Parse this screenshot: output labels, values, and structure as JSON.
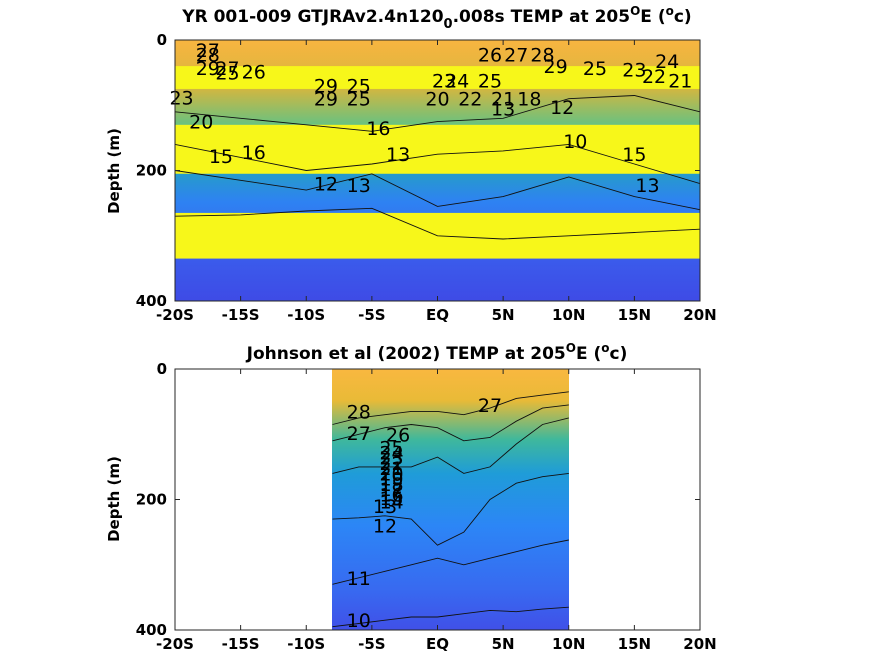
{
  "colors": {
    "warm": "#F6B942",
    "mid": "#2FB0A6",
    "cool": "#3A4FEA",
    "band": "#F7F71A",
    "background": "#FFFFFF"
  },
  "chart_data": [
    {
      "type": "heatmap",
      "title": "YR 001-009 GTJRAv2.4n120₀.008s TEMP at 205°E (°c)",
      "title_main": "YR 001-009 GTJRAv2.4n120",
      "title_sub": "0",
      "title_rest": ".008s TEMP at 205",
      "title_deg1": "O",
      "title_mid": "E (",
      "title_deg2": "o",
      "title_end": "c)",
      "ylabel": "Depth (m)",
      "xlim": [
        -20,
        20
      ],
      "ylim": [
        0,
        400
      ],
      "y_reversed": true,
      "x_ticks": [
        -20,
        -15,
        -10,
        -5,
        0,
        5,
        10,
        15,
        20
      ],
      "x_ticklabels": [
        "-20S",
        "-15S",
        "-10S",
        "-5S",
        "EQ",
        "5N",
        "10N",
        "15N",
        "20N"
      ],
      "y_ticks": [
        0,
        200,
        400
      ],
      "y_ticklabels": [
        "0",
        "200",
        "400"
      ],
      "yellow_bands_depth": [
        [
          40,
          75
        ],
        [
          130,
          205
        ],
        [
          265,
          335
        ]
      ],
      "series": [
        {
          "lat": [
            -20,
            -15,
            -10,
            -5,
            0,
            5,
            10,
            15,
            20
          ],
          "depth": [
            270,
            268,
            262,
            258,
            300,
            305,
            300,
            295,
            290
          ],
          "label": "15"
        },
        {
          "lat": [
            -20,
            -15,
            -10,
            -5,
            0,
            5,
            10,
            15,
            20
          ],
          "depth": [
            200,
            215,
            230,
            205,
            255,
            240,
            210,
            240,
            260
          ],
          "label": "16"
        },
        {
          "lat": [
            -20,
            -15,
            -10,
            -5,
            0,
            5,
            10,
            15,
            20
          ],
          "depth": [
            160,
            180,
            200,
            190,
            175,
            170,
            160,
            190,
            220
          ],
          "label": "20"
        },
        {
          "lat": [
            -20,
            -15,
            -10,
            -5,
            0,
            5,
            10,
            15,
            20
          ],
          "depth": [
            110,
            120,
            130,
            140,
            125,
            120,
            90,
            85,
            110
          ],
          "label": "23"
        }
      ],
      "contour_labels": [
        {
          "x": -17.5,
          "y": 15,
          "text": "27"
        },
        {
          "x": -17.5,
          "y": 22,
          "text": "28"
        },
        {
          "x": 4,
          "y": 22,
          "text": "26"
        },
        {
          "x": 6,
          "y": 22,
          "text": "27"
        },
        {
          "x": 8,
          "y": 22,
          "text": "28"
        },
        {
          "x": -17.5,
          "y": 43,
          "text": "29"
        },
        {
          "x": -16,
          "y": 43,
          "text": "27"
        },
        {
          "x": -16,
          "y": 50,
          "text": "25"
        },
        {
          "x": -14,
          "y": 48,
          "text": "26"
        },
        {
          "x": 9,
          "y": 40,
          "text": "29"
        },
        {
          "x": 12,
          "y": 43,
          "text": "25"
        },
        {
          "x": 15,
          "y": 45,
          "text": "23"
        },
        {
          "x": 17.5,
          "y": 32,
          "text": "24"
        },
        {
          "x": 16.5,
          "y": 55,
          "text": "22"
        },
        {
          "x": 18.5,
          "y": 62,
          "text": "21"
        },
        {
          "x": 0.5,
          "y": 62,
          "text": "23"
        },
        {
          "x": 1.5,
          "y": 62,
          "text": "24"
        },
        {
          "x": 4,
          "y": 62,
          "text": "25"
        },
        {
          "x": -6,
          "y": 70,
          "text": "25"
        },
        {
          "x": -8.5,
          "y": 70,
          "text": "29"
        },
        {
          "x": -19.5,
          "y": 88,
          "text": "23"
        },
        {
          "x": -8.5,
          "y": 90,
          "text": "29"
        },
        {
          "x": -6,
          "y": 90,
          "text": "25"
        },
        {
          "x": 0,
          "y": 90,
          "text": "20"
        },
        {
          "x": 2.5,
          "y": 90,
          "text": "22"
        },
        {
          "x": 5,
          "y": 90,
          "text": "21"
        },
        {
          "x": 7,
          "y": 90,
          "text": "18"
        },
        {
          "x": 5,
          "y": 105,
          "text": "13"
        },
        {
          "x": 9.5,
          "y": 103,
          "text": "12"
        },
        {
          "x": -18,
          "y": 125,
          "text": "20"
        },
        {
          "x": -4.5,
          "y": 135,
          "text": "16"
        },
        {
          "x": -14,
          "y": 172,
          "text": "16"
        },
        {
          "x": -16.5,
          "y": 178,
          "text": "15"
        },
        {
          "x": -3,
          "y": 175,
          "text": "13"
        },
        {
          "x": 10.5,
          "y": 155,
          "text": "10"
        },
        {
          "x": 15,
          "y": 175,
          "text": "15"
        },
        {
          "x": -8.5,
          "y": 220,
          "text": "12"
        },
        {
          "x": -6,
          "y": 222,
          "text": "13"
        },
        {
          "x": 16,
          "y": 222,
          "text": "13"
        }
      ]
    },
    {
      "type": "heatmap",
      "title": "Johnson et al (2002) TEMP at 205°E (°c)",
      "title_main": "Johnson et al (2002) TEMP at 205",
      "title_deg1": "O",
      "title_mid": "E (",
      "title_deg2": "o",
      "title_end": "c)",
      "ylabel": "Depth (m)",
      "xlim": [
        -20,
        20
      ],
      "ylim": [
        0,
        400
      ],
      "y_reversed": true,
      "data_lat_range": [
        -8,
        10
      ],
      "x_ticks": [
        -20,
        -15,
        -10,
        -5,
        0,
        5,
        10,
        15,
        20
      ],
      "x_ticklabels": [
        "-20S",
        "-15S",
        "-10S",
        "-5S",
        "EQ",
        "5N",
        "10N",
        "15N",
        "20N"
      ],
      "y_ticks": [
        0,
        200,
        400
      ],
      "y_ticklabels": [
        "0",
        "200",
        "400"
      ],
      "series": [
        {
          "lat": [
            -8,
            -6,
            -4,
            -2,
            0,
            2,
            4,
            6,
            8,
            10
          ],
          "depth": [
            395,
            390,
            385,
            380,
            380,
            375,
            370,
            372,
            368,
            365
          ],
          "label": "10"
        },
        {
          "lat": [
            -8,
            -6,
            -4,
            -2,
            0,
            2,
            4,
            6,
            8,
            10
          ],
          "depth": [
            330,
            320,
            310,
            300,
            290,
            300,
            290,
            280,
            270,
            262
          ],
          "label": "11"
        },
        {
          "lat": [
            -8,
            -6,
            -4,
            -2,
            0,
            2,
            4,
            6,
            8,
            10
          ],
          "depth": [
            230,
            228,
            225,
            230,
            270,
            250,
            200,
            175,
            165,
            160
          ],
          "label": "12"
        },
        {
          "lat": [
            -8,
            -6,
            -4,
            -2,
            0,
            2,
            4,
            6,
            8,
            10
          ],
          "depth": [
            160,
            150,
            150,
            150,
            135,
            160,
            150,
            115,
            85,
            75
          ],
          "label": "20"
        },
        {
          "lat": [
            -8,
            -6,
            -4,
            -2,
            0,
            2,
            4,
            6,
            8,
            10
          ],
          "depth": [
            110,
            100,
            90,
            85,
            90,
            110,
            105,
            80,
            60,
            55
          ],
          "label": "26"
        },
        {
          "lat": [
            -8,
            -6,
            -4,
            -2,
            0,
            2,
            4,
            6,
            8,
            10
          ],
          "depth": [
            85,
            75,
            70,
            65,
            65,
            70,
            60,
            45,
            40,
            35
          ],
          "label": "27"
        }
      ],
      "contour_labels": [
        {
          "x": -6,
          "y": 65,
          "text": "28"
        },
        {
          "x": -6,
          "y": 98,
          "text": "27"
        },
        {
          "x": -3,
          "y": 100,
          "text": "26"
        },
        {
          "x": -3.5,
          "y": 120,
          "text": "25"
        },
        {
          "x": -3.5,
          "y": 128,
          "text": "24"
        },
        {
          "x": -3.5,
          "y": 136,
          "text": "23"
        },
        {
          "x": -3.5,
          "y": 144,
          "text": "22"
        },
        {
          "x": -3.5,
          "y": 152,
          "text": "21"
        },
        {
          "x": -3.5,
          "y": 160,
          "text": "20"
        },
        {
          "x": -3.5,
          "y": 168,
          "text": "19"
        },
        {
          "x": -3.5,
          "y": 176,
          "text": "18"
        },
        {
          "x": -3.5,
          "y": 184,
          "text": "17"
        },
        {
          "x": -3.5,
          "y": 192,
          "text": "16"
        },
        {
          "x": -3.5,
          "y": 198,
          "text": "15"
        },
        {
          "x": -3.5,
          "y": 203,
          "text": "14"
        },
        {
          "x": -4,
          "y": 210,
          "text": "13"
        },
        {
          "x": 4,
          "y": 55,
          "text": "27"
        },
        {
          "x": -4,
          "y": 240,
          "text": "12"
        },
        {
          "x": -6,
          "y": 320,
          "text": "11"
        },
        {
          "x": -6,
          "y": 385,
          "text": "10"
        }
      ]
    }
  ]
}
